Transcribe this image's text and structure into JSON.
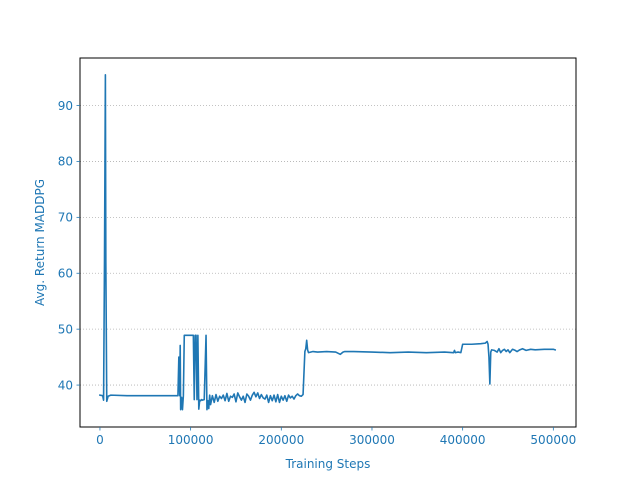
{
  "chart_data": {
    "type": "line",
    "title": "",
    "xlabel": "Training Steps",
    "ylabel": "Avg. Return MADDPG",
    "xlim": [
      -22000,
      525000
    ],
    "ylim": [
      32.5,
      98.5
    ],
    "xticks": [
      0,
      100000,
      200000,
      300000,
      400000,
      500000
    ],
    "xtick_labels": [
      "0",
      "100000",
      "200000",
      "300000",
      "400000",
      "500000"
    ],
    "yticks": [
      40,
      50,
      60,
      70,
      80,
      90
    ],
    "ytick_labels": [
      "40",
      "50",
      "60",
      "70",
      "80",
      "90"
    ],
    "grid": "y-dotted",
    "color": "#1f77b4",
    "series": [
      {
        "x": [
          0,
          3000,
          4000,
          5000,
          6000,
          6500,
          7500,
          9000,
          12000,
          30000,
          60000,
          86000,
          87000,
          88000,
          88500,
          89000,
          90000,
          91000,
          92000,
          93000,
          94000,
          95000,
          100000,
          103000,
          104000,
          105000,
          106000,
          107000,
          108000,
          109000,
          110000,
          111000,
          112000,
          113000,
          115000,
          117000,
          118000,
          119000,
          120000,
          121000,
          122000,
          124000,
          126000,
          128000,
          130000,
          132000,
          134000,
          136000,
          138000,
          140000,
          142000,
          144000,
          146000,
          148000,
          150000,
          152000,
          154000,
          156000,
          158000,
          160000,
          162000,
          164000,
          166000,
          168000,
          170000,
          172000,
          174000,
          176000,
          178000,
          180000,
          182000,
          184000,
          186000,
          188000,
          190000,
          192000,
          194000,
          196000,
          198000,
          200000,
          202000,
          204000,
          206000,
          208000,
          210000,
          212000,
          214000,
          216000,
          218000,
          220000,
          222000,
          224000,
          226000,
          227000,
          228000,
          229000,
          230000,
          235000,
          240000,
          250000,
          260000,
          265000,
          268000,
          270000,
          280000,
          300000,
          320000,
          340000,
          360000,
          380000,
          390000,
          391000,
          392000,
          395000,
          398000,
          400000,
          410000,
          420000,
          425000,
          427000,
          428000,
          429000,
          430000,
          431000,
          432000,
          435000,
          438000,
          440000,
          442000,
          444000,
          446000,
          448000,
          450000,
          452000,
          455000,
          458000,
          460000,
          463000,
          466000,
          470000,
          475000,
          480000,
          490000,
          500000,
          502000
        ],
        "y": [
          38.2,
          38.1,
          37.3,
          62,
          95.5,
          62,
          37.1,
          38.0,
          38.2,
          38.1,
          38.1,
          38.1,
          45,
          38.1,
          47.1,
          35.6,
          37.8,
          35.6,
          38.1,
          48.9,
          48.9,
          48.9,
          48.9,
          48.9,
          37.4,
          48.9,
          48.9,
          37.4,
          48.9,
          35.7,
          37.3,
          37.2,
          37.4,
          37.3,
          37.4,
          48.9,
          35.6,
          37.2,
          35.8,
          38.2,
          36.5,
          38.1,
          36.9,
          38.3,
          37.1,
          38.0,
          37.6,
          38.2,
          37.2,
          38.5,
          37.1,
          38.0,
          37.8,
          38.4,
          37.0,
          38.6,
          37.9,
          37.3,
          38.0,
          36.9,
          38.4,
          38.0,
          37.3,
          38.2,
          38.7,
          37.9,
          38.6,
          37.6,
          38.3,
          37.7,
          37.5,
          38.2,
          36.9,
          38.1,
          37.2,
          38.2,
          37.0,
          38.3,
          36.9,
          38.0,
          37.3,
          38.1,
          37.1,
          38.2,
          37.7,
          38.0,
          37.5,
          38.1,
          38.4,
          38.1,
          38.0,
          38.3,
          46,
          46.5,
          48.0,
          46.3,
          45.8,
          46.0,
          45.9,
          46.0,
          45.9,
          45.5,
          45.9,
          46.0,
          46.0,
          45.9,
          45.8,
          45.9,
          45.8,
          45.9,
          45.8,
          46.2,
          45.8,
          45.9,
          45.8,
          47.3,
          47.3,
          47.4,
          47.5,
          47.8,
          47.3,
          45,
          40.2,
          45.9,
          46.3,
          46.2,
          45.9,
          46.5,
          45.8,
          46.2,
          46.4,
          46.0,
          46.3,
          45.8,
          46.4,
          46.2,
          46.0,
          46.3,
          46.5,
          46.2,
          46.4,
          46.3,
          46.4,
          46.4,
          46.3
        ]
      }
    ]
  }
}
